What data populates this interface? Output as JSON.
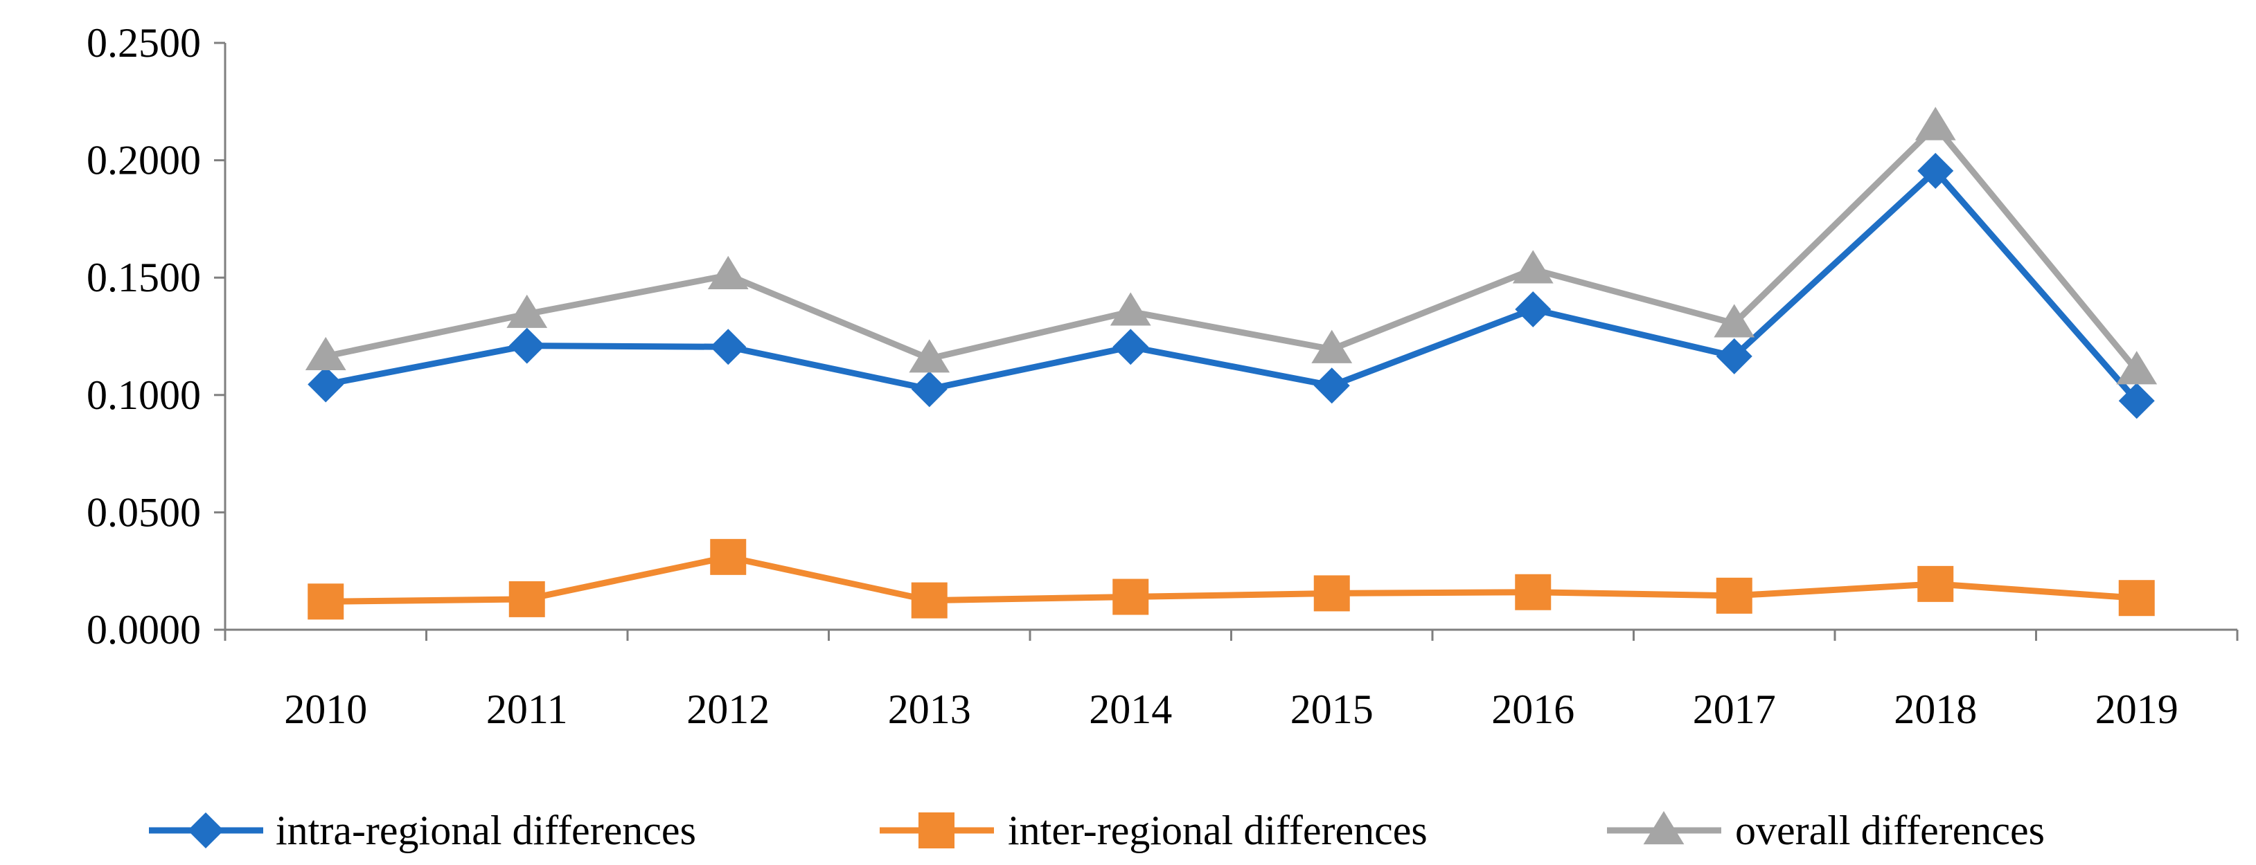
{
  "chart_data": {
    "type": "line",
    "title": "",
    "xlabel": "",
    "ylabel": "",
    "categories": [
      "2010",
      "2011",
      "2012",
      "2013",
      "2014",
      "2015",
      "2016",
      "2017",
      "2018",
      "2019"
    ],
    "ylim": [
      0,
      0.25
    ],
    "yticks": [
      0,
      0.05,
      0.1,
      0.15,
      0.2,
      0.25
    ],
    "ytick_labels": [
      "0.0000",
      "0.0500",
      "0.1000",
      "0.1500",
      "0.2000",
      "0.2500"
    ],
    "grid": false,
    "legend_position": "bottom",
    "series": [
      {
        "name": "intra-regional differences",
        "color": "#1f6fc5",
        "marker": "diamond",
        "values": [
          0.1045,
          0.121,
          0.1205,
          0.1025,
          0.1205,
          0.104,
          0.1365,
          0.1165,
          0.1955,
          0.0975
        ]
      },
      {
        "name": "inter-regional differences",
        "color": "#f28a30",
        "marker": "square",
        "values": [
          0.012,
          0.013,
          0.031,
          0.0125,
          0.014,
          0.0155,
          0.016,
          0.0145,
          0.0195,
          0.0135
        ]
      },
      {
        "name": "overall differences",
        "color": "#a5a5a5",
        "marker": "triangle",
        "values": [
          0.1165,
          0.1345,
          0.151,
          0.1155,
          0.1355,
          0.1195,
          0.1535,
          0.1305,
          0.2145,
          0.1105
        ]
      }
    ]
  }
}
